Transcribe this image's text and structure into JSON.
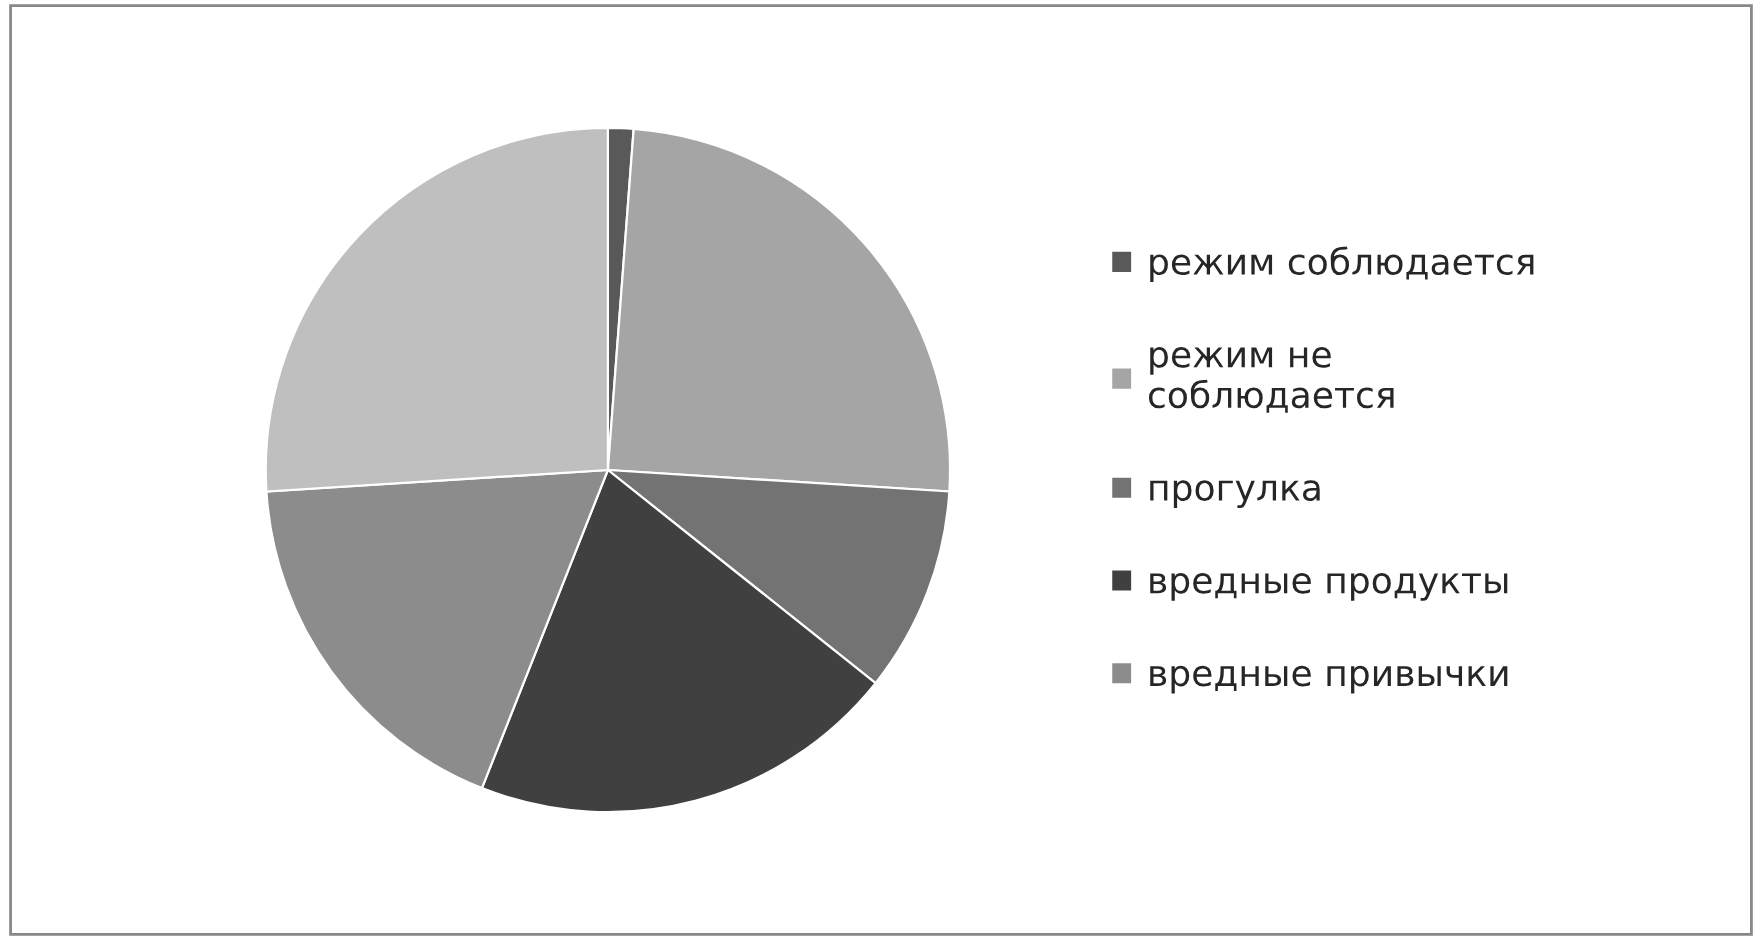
{
  "chart_data": {
    "type": "pie",
    "categories": [
      "режим соблюдается",
      "режим не\nсоблюдается",
      "прогулка",
      "вредные продукты",
      "вредные привычки",
      null
    ],
    "values": [
      1.2,
      24.8,
      9.7,
      20.3,
      18.0,
      26.0
    ],
    "colors": [
      "#595959",
      "#a5a5a5",
      "#737373",
      "#404040",
      "#8c8c8c",
      "#bfbfbf"
    ],
    "legend": "right"
  }
}
